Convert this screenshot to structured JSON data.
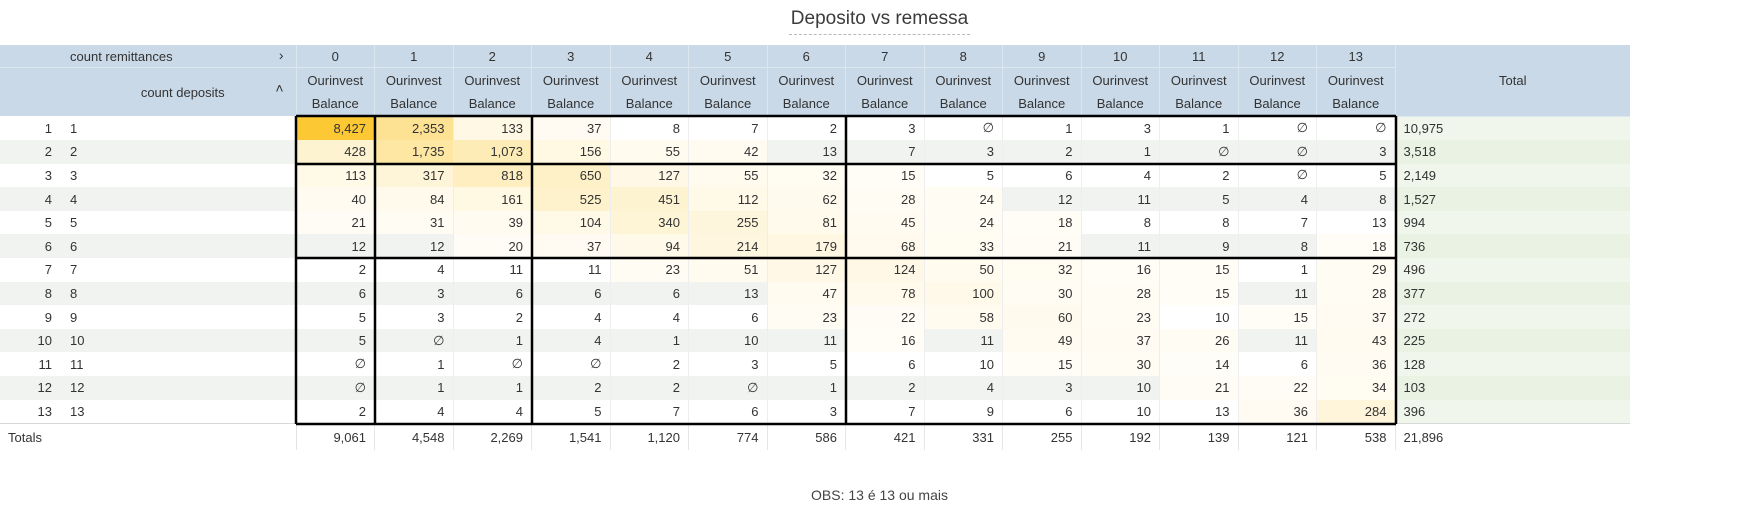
{
  "title": "Deposito vs remessa",
  "note": "OBS: 13 é 13 ou mais",
  "pivot": {
    "column_dimension": "count remittances",
    "row_dimension": "count deposits",
    "column_expand_icon": "chevron-right-icon",
    "row_sort_icon": "chevron-up-icon",
    "measure_label_line1": "Ourinvest",
    "measure_label_line2": "Balance",
    "total_header": "Total",
    "totals_label": "Totals"
  },
  "colors": {
    "header_bg": "#c9d9e8",
    "heat_max": "#fcc934",
    "heat_min": "#ffffff",
    "total_col_bg": "#f0f6ec",
    "block_border": "#000000"
  },
  "chart_data": {
    "type": "table",
    "columns": [
      "0",
      "1",
      "2",
      "3",
      "4",
      "5",
      "6",
      "7",
      "8",
      "9",
      "10",
      "11",
      "12",
      "13"
    ],
    "rows": [
      {
        "num": "1",
        "label": "1",
        "values": [
          "8,427",
          "2,353",
          "133",
          "37",
          "8",
          "7",
          "2",
          "3",
          "∅",
          "1",
          "3",
          "1",
          "∅",
          "∅"
        ],
        "total": "10,975"
      },
      {
        "num": "2",
        "label": "2",
        "values": [
          "428",
          "1,735",
          "1,073",
          "156",
          "55",
          "42",
          "13",
          "7",
          "3",
          "2",
          "1",
          "∅",
          "∅",
          "3"
        ],
        "total": "3,518"
      },
      {
        "num": "3",
        "label": "3",
        "values": [
          "113",
          "317",
          "818",
          "650",
          "127",
          "55",
          "32",
          "15",
          "5",
          "6",
          "4",
          "2",
          "∅",
          "5"
        ],
        "total": "2,149"
      },
      {
        "num": "4",
        "label": "4",
        "values": [
          "40",
          "84",
          "161",
          "525",
          "451",
          "112",
          "62",
          "28",
          "24",
          "12",
          "11",
          "5",
          "4",
          "8"
        ],
        "total": "1,527"
      },
      {
        "num": "5",
        "label": "5",
        "values": [
          "21",
          "31",
          "39",
          "104",
          "340",
          "255",
          "81",
          "45",
          "24",
          "18",
          "8",
          "8",
          "7",
          "13"
        ],
        "total": "994"
      },
      {
        "num": "6",
        "label": "6",
        "values": [
          "12",
          "12",
          "20",
          "37",
          "94",
          "214",
          "179",
          "68",
          "33",
          "21",
          "11",
          "9",
          "8",
          "18"
        ],
        "total": "736"
      },
      {
        "num": "7",
        "label": "7",
        "values": [
          "2",
          "4",
          "11",
          "11",
          "23",
          "51",
          "127",
          "124",
          "50",
          "32",
          "16",
          "15",
          "1",
          "29"
        ],
        "total": "496"
      },
      {
        "num": "8",
        "label": "8",
        "values": [
          "6",
          "3",
          "6",
          "6",
          "6",
          "13",
          "47",
          "78",
          "100",
          "30",
          "28",
          "15",
          "11",
          "28"
        ],
        "total": "377"
      },
      {
        "num": "9",
        "label": "9",
        "values": [
          "5",
          "3",
          "2",
          "4",
          "4",
          "6",
          "23",
          "22",
          "58",
          "60",
          "23",
          "10",
          "15",
          "37"
        ],
        "total": "272"
      },
      {
        "num": "10",
        "label": "10",
        "values": [
          "5",
          "∅",
          "1",
          "4",
          "1",
          "10",
          "11",
          "16",
          "11",
          "49",
          "37",
          "26",
          "11",
          "43"
        ],
        "total": "225"
      },
      {
        "num": "11",
        "label": "11",
        "values": [
          "∅",
          "1",
          "∅",
          "∅",
          "2",
          "3",
          "5",
          "6",
          "10",
          "15",
          "30",
          "14",
          "6",
          "36"
        ],
        "total": "128"
      },
      {
        "num": "12",
        "label": "12",
        "values": [
          "∅",
          "1",
          "1",
          "2",
          "2",
          "∅",
          "1",
          "2",
          "4",
          "3",
          "10",
          "21",
          "22",
          "34"
        ],
        "total": "103"
      },
      {
        "num": "13",
        "label": "13",
        "values": [
          "2",
          "4",
          "4",
          "5",
          "7",
          "6",
          "3",
          "7",
          "9",
          "6",
          "10",
          "13",
          "36",
          "284"
        ],
        "total": "396"
      }
    ],
    "column_totals": [
      "9,061",
      "4,548",
      "2,269",
      "1,541",
      "1,120",
      "774",
      "586",
      "421",
      "331",
      "255",
      "192",
      "139",
      "121",
      "538"
    ],
    "grand_total": "21,896",
    "heatmap": true
  }
}
